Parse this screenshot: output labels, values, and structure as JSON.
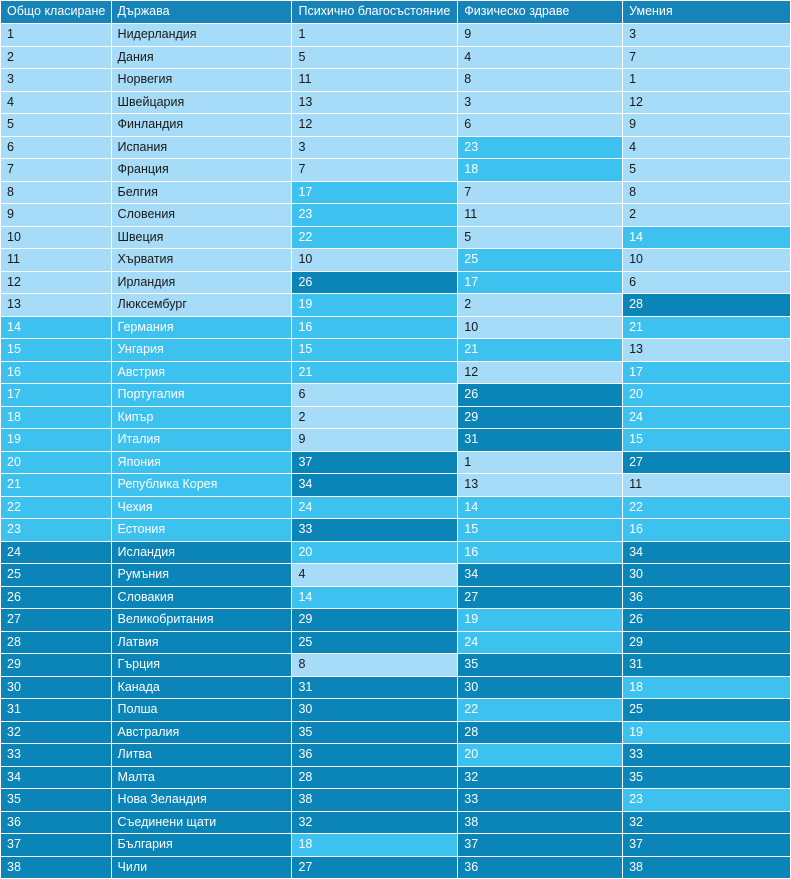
{
  "table": {
    "headers": [
      "Общо класиране",
      "Държава",
      "Психично благосъстояние",
      "Физическо здраве",
      "Умения"
    ],
    "colors": {
      "light": "#a6dcf7",
      "medium": "#3dc2ef",
      "dark": "#0b84b7",
      "header": "#1784b9"
    },
    "rows": [
      {
        "rank": "1",
        "country": "Нидерландия",
        "mental": "1",
        "physical": "9",
        "skills": "3",
        "levels": [
          1,
          1,
          1,
          1,
          1
        ]
      },
      {
        "rank": "2",
        "country": "Дания",
        "mental": "5",
        "physical": "4",
        "skills": "7",
        "levels": [
          1,
          1,
          1,
          1,
          1
        ]
      },
      {
        "rank": "3",
        "country": "Норвегия",
        "mental": "11",
        "physical": "8",
        "skills": "1",
        "levels": [
          1,
          1,
          1,
          1,
          1
        ]
      },
      {
        "rank": "4",
        "country": "Швейцария",
        "mental": "13",
        "physical": "3",
        "skills": "12",
        "levels": [
          1,
          1,
          1,
          1,
          1
        ]
      },
      {
        "rank": "5",
        "country": "Финландия",
        "mental": "12",
        "physical": "6",
        "skills": "9",
        "levels": [
          1,
          1,
          1,
          1,
          1
        ]
      },
      {
        "rank": "6",
        "country": "Испания",
        "mental": "3",
        "physical": "23",
        "skills": "4",
        "levels": [
          1,
          1,
          1,
          2,
          1
        ]
      },
      {
        "rank": "7",
        "country": "Франция",
        "mental": "7",
        "physical": "18",
        "skills": "5",
        "levels": [
          1,
          1,
          1,
          2,
          1
        ]
      },
      {
        "rank": "8",
        "country": "Белгия",
        "mental": "17",
        "physical": "7",
        "skills": "8",
        "levels": [
          1,
          1,
          2,
          1,
          1
        ]
      },
      {
        "rank": "9",
        "country": "Словения",
        "mental": "23",
        "physical": "11",
        "skills": "2",
        "levels": [
          1,
          1,
          2,
          1,
          1
        ]
      },
      {
        "rank": "10",
        "country": "Швеция",
        "mental": "22",
        "physical": "5",
        "skills": "14",
        "levels": [
          1,
          1,
          2,
          1,
          2
        ]
      },
      {
        "rank": "11",
        "country": "Хърватия",
        "mental": "10",
        "physical": "25",
        "skills": "10",
        "levels": [
          1,
          1,
          1,
          2,
          1
        ]
      },
      {
        "rank": "12",
        "country": "Ирландия",
        "mental": "26",
        "physical": "17",
        "skills": "6",
        "levels": [
          1,
          1,
          3,
          2,
          1
        ]
      },
      {
        "rank": "13",
        "country": "Люксембург",
        "mental": "19",
        "physical": "2",
        "skills": "28",
        "levels": [
          1,
          1,
          2,
          1,
          3
        ]
      },
      {
        "rank": "14",
        "country": "Германия",
        "mental": "16",
        "physical": "10",
        "skills": "21",
        "levels": [
          2,
          2,
          2,
          1,
          2
        ]
      },
      {
        "rank": "15",
        "country": "Унгария",
        "mental": "15",
        "physical": "21",
        "skills": "13",
        "levels": [
          2,
          2,
          2,
          2,
          1
        ]
      },
      {
        "rank": "16",
        "country": "Австрия",
        "mental": "21",
        "physical": "12",
        "skills": "17",
        "levels": [
          2,
          2,
          2,
          1,
          2
        ]
      },
      {
        "rank": "17",
        "country": "Португалия",
        "mental": "6",
        "physical": "26",
        "skills": "20",
        "levels": [
          2,
          2,
          1,
          3,
          2
        ]
      },
      {
        "rank": "18",
        "country": "Кипър",
        "mental": "2",
        "physical": "29",
        "skills": "24",
        "levels": [
          2,
          2,
          1,
          3,
          2
        ]
      },
      {
        "rank": "19",
        "country": "Италия",
        "mental": "9",
        "physical": "31",
        "skills": "15",
        "levels": [
          2,
          2,
          1,
          3,
          2
        ]
      },
      {
        "rank": "20",
        "country": "Япония",
        "mental": "37",
        "physical": "1",
        "skills": "27",
        "levels": [
          2,
          2,
          3,
          1,
          3
        ]
      },
      {
        "rank": "21",
        "country": "Република Корея",
        "mental": "34",
        "physical": "13",
        "skills": "11",
        "levels": [
          2,
          2,
          3,
          1,
          1
        ]
      },
      {
        "rank": "22",
        "country": "Чехия",
        "mental": "24",
        "physical": "14",
        "skills": "22",
        "levels": [
          2,
          2,
          2,
          2,
          2
        ]
      },
      {
        "rank": "23",
        "country": "Естония",
        "mental": "33",
        "physical": "15",
        "skills": "16",
        "levels": [
          2,
          2,
          3,
          2,
          2
        ]
      },
      {
        "rank": "24",
        "country": "Исландия",
        "mental": "20",
        "physical": "16",
        "skills": "34",
        "levels": [
          3,
          3,
          2,
          2,
          3
        ]
      },
      {
        "rank": "25",
        "country": "Румъния",
        "mental": "4",
        "physical": "34",
        "skills": "30",
        "levels": [
          3,
          3,
          1,
          3,
          3
        ]
      },
      {
        "rank": "26",
        "country": "Словакия",
        "mental": "14",
        "physical": "27",
        "skills": "36",
        "levels": [
          3,
          3,
          2,
          3,
          3
        ]
      },
      {
        "rank": "27",
        "country": "Великобритания",
        "mental": "29",
        "physical": "19",
        "skills": "26",
        "levels": [
          3,
          3,
          3,
          2,
          3
        ]
      },
      {
        "rank": "28",
        "country": "Латвия",
        "mental": "25",
        "physical": "24",
        "skills": "29",
        "levels": [
          3,
          3,
          3,
          2,
          3
        ]
      },
      {
        "rank": "29",
        "country": "Гърция",
        "mental": "8",
        "physical": "35",
        "skills": "31",
        "levels": [
          3,
          3,
          1,
          3,
          3
        ]
      },
      {
        "rank": "30",
        "country": "Канада",
        "mental": "31",
        "physical": "30",
        "skills": "18",
        "levels": [
          3,
          3,
          3,
          3,
          2
        ]
      },
      {
        "rank": "31",
        "country": "Полша",
        "mental": "30",
        "physical": "22",
        "skills": "25",
        "levels": [
          3,
          3,
          3,
          2,
          3
        ]
      },
      {
        "rank": "32",
        "country": "Австралия",
        "mental": "35",
        "physical": "28",
        "skills": "19",
        "levels": [
          3,
          3,
          3,
          3,
          2
        ]
      },
      {
        "rank": "33",
        "country": "Литва",
        "mental": "36",
        "physical": "20",
        "skills": "33",
        "levels": [
          3,
          3,
          3,
          2,
          3
        ]
      },
      {
        "rank": "34",
        "country": "Малта",
        "mental": "28",
        "physical": "32",
        "skills": "35",
        "levels": [
          3,
          3,
          3,
          3,
          3
        ]
      },
      {
        "rank": "35",
        "country": "Нова Зеландия",
        "mental": "38",
        "physical": "33",
        "skills": "23",
        "levels": [
          3,
          3,
          3,
          3,
          2
        ]
      },
      {
        "rank": "36",
        "country": "Съединени щати",
        "mental": "32",
        "physical": "38",
        "skills": "32",
        "levels": [
          3,
          3,
          3,
          3,
          3
        ]
      },
      {
        "rank": "37",
        "country": "България",
        "mental": "18",
        "physical": "37",
        "skills": "37",
        "levels": [
          3,
          3,
          2,
          3,
          3
        ]
      },
      {
        "rank": "38",
        "country": "Чили",
        "mental": "27",
        "physical": "36",
        "skills": "38",
        "levels": [
          3,
          3,
          3,
          3,
          3
        ]
      }
    ]
  }
}
